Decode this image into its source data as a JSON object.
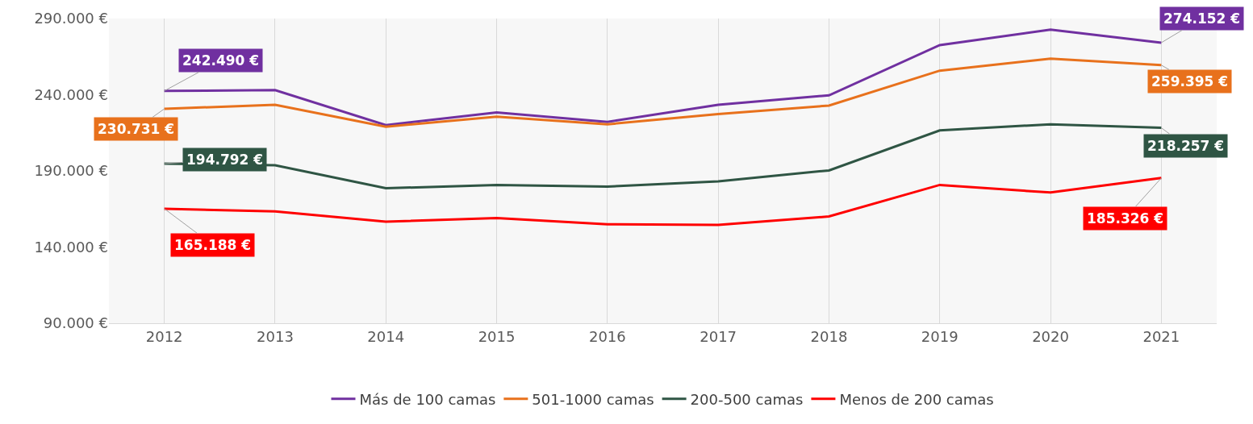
{
  "chart_data": {
    "type": "line",
    "categories": [
      "2012",
      "2013",
      "2014",
      "2015",
      "2016",
      "2017",
      "2018",
      "2019",
      "2020",
      "2021"
    ],
    "series": [
      {
        "name": "Más de 100 camas",
        "color": "#7030a0",
        "values": [
          242490,
          243000,
          220000,
          228400,
          222200,
          233400,
          239600,
          272600,
          282700,
          274152
        ],
        "value_labels": [
          "242.490 €",
          null,
          null,
          null,
          null,
          null,
          null,
          null,
          null,
          "274.152 €"
        ]
      },
      {
        "name": "501-1000 camas",
        "color": "#e8711c",
        "values": [
          230731,
          233400,
          219000,
          225600,
          220600,
          227300,
          232900,
          255800,
          263700,
          259395
        ],
        "value_labels": [
          "230.731 €",
          null,
          null,
          null,
          null,
          null,
          null,
          null,
          null,
          "259.395 €"
        ]
      },
      {
        "name": "200-500 camas",
        "color": "#2f5544",
        "values": [
          194792,
          193700,
          178600,
          180800,
          179700,
          183100,
          190300,
          216600,
          220600,
          218257
        ],
        "value_labels": [
          "194.792 €",
          null,
          null,
          null,
          null,
          null,
          null,
          null,
          null,
          "218.257 €"
        ]
      },
      {
        "name": "Menos de 200 camas",
        "color": "#ff0000",
        "values": [
          165188,
          163400,
          156700,
          159000,
          155000,
          154500,
          160100,
          180800,
          175800,
          185326
        ],
        "value_labels": [
          "165.188 €",
          null,
          null,
          null,
          null,
          null,
          null,
          null,
          null,
          "185.326 €"
        ]
      }
    ],
    "ylim": [
      90000,
      290000
    ],
    "yticks": [
      {
        "value": 90000,
        "label": "90.000 €"
      },
      {
        "value": 140000,
        "label": "140.000 €"
      },
      {
        "value": 190000,
        "label": "190.000 €"
      },
      {
        "value": 240000,
        "label": "240.000 €"
      },
      {
        "value": 290000,
        "label": "290.000 €"
      }
    ],
    "grid": "x",
    "legend": "bottom",
    "marker": "none",
    "line_style": "solid"
  }
}
